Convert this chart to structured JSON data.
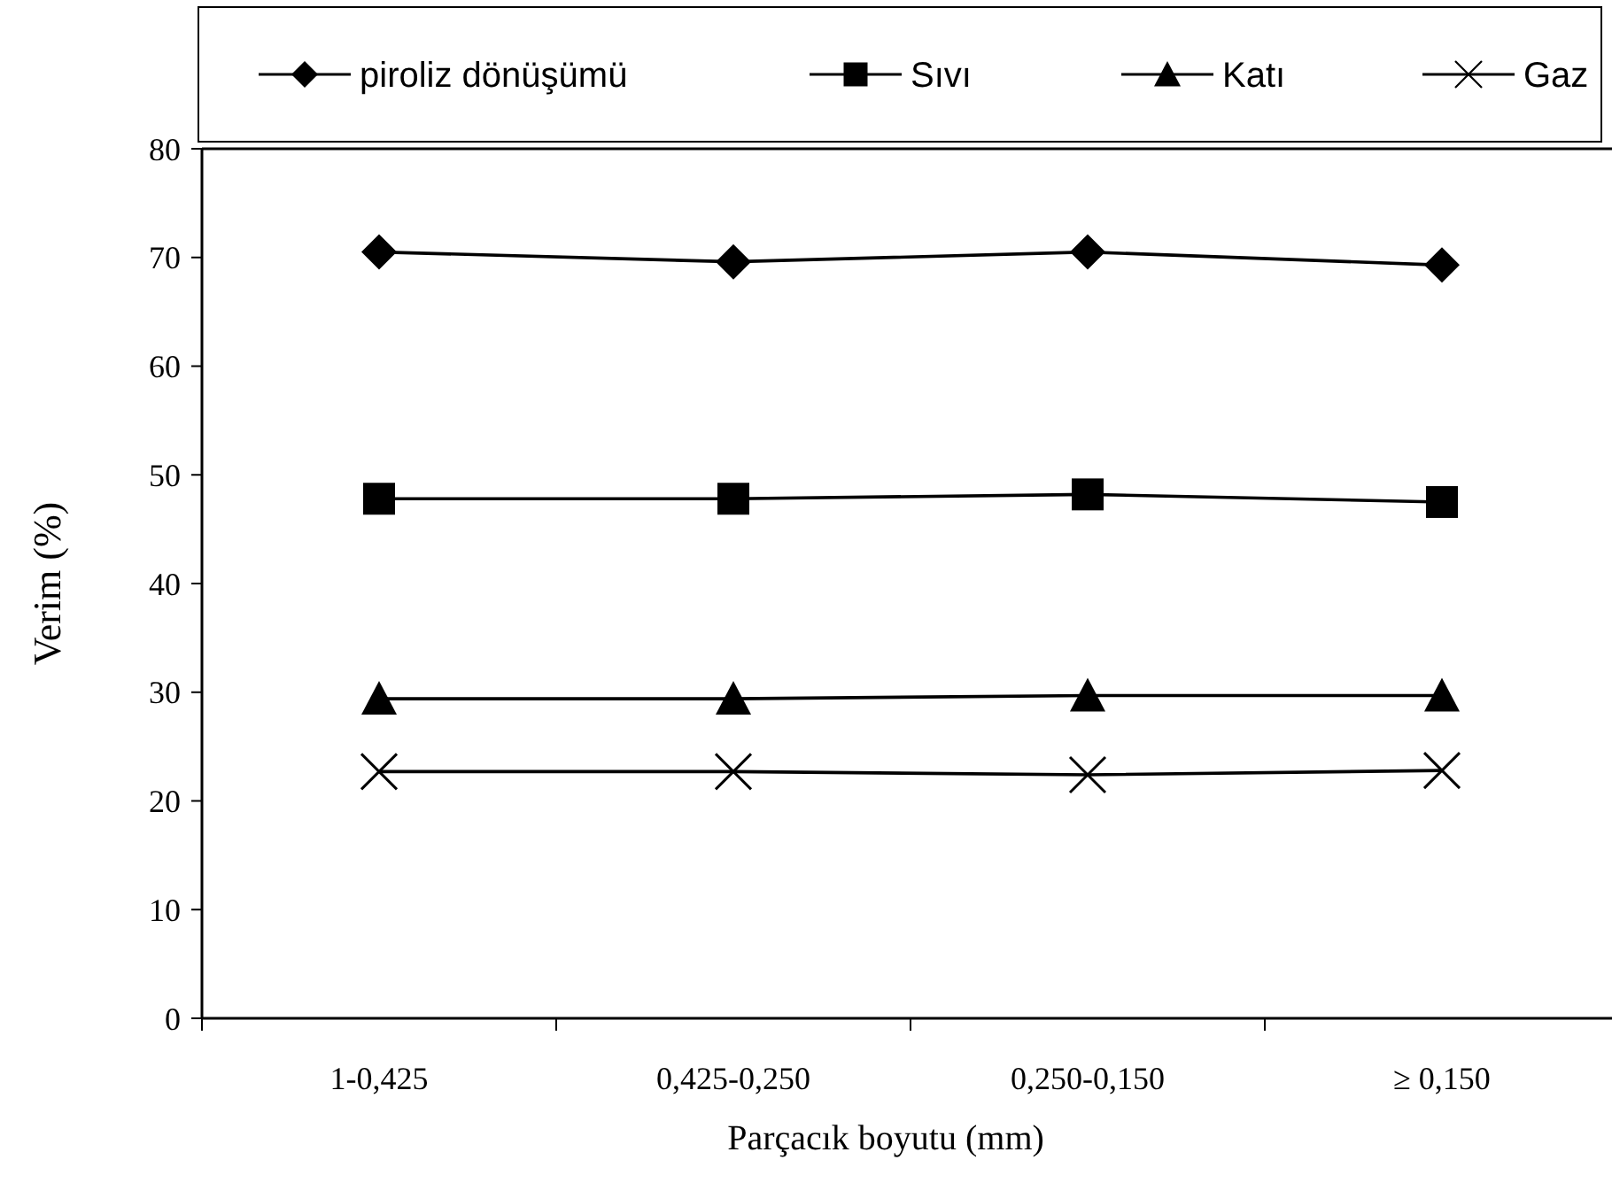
{
  "chart_data": {
    "type": "line",
    "xlabel": "Parçacık boyutu (mm)",
    "ylabel": "Verim (%)",
    "categories": [
      "1-0,425",
      "0,425-0,250",
      "0,250-0,150",
      "≥ 0,150"
    ],
    "series": [
      {
        "name": "piroliz dönüşümü",
        "color": "#000000",
        "marker": "diamond",
        "values": [
          70.5,
          69.6,
          70.5,
          69.3
        ]
      },
      {
        "name": "Sıvı",
        "color": "#000000",
        "marker": "square",
        "values": [
          47.8,
          47.8,
          48.2,
          47.5
        ]
      },
      {
        "name": "Katı",
        "color": "#000000",
        "marker": "triangle",
        "values": [
          29.4,
          29.4,
          29.7,
          29.7
        ]
      },
      {
        "name": "Gaz",
        "color": "#000000",
        "marker": "cross",
        "values": [
          22.7,
          22.7,
          22.4,
          22.8
        ]
      }
    ],
    "ylim": [
      0,
      80
    ],
    "yticks": [
      0,
      10,
      20,
      30,
      40,
      50,
      60,
      70,
      80
    ],
    "grid": false,
    "legend": "top",
    "line_style": "solid"
  }
}
